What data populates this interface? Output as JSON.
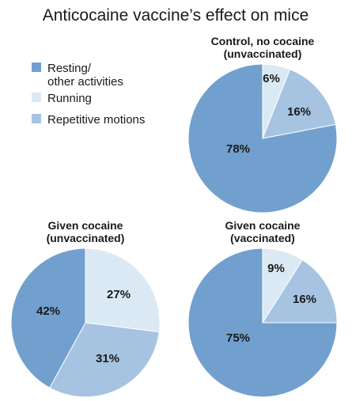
{
  "chart_data": {
    "type": "pie",
    "title": "Anticocaine vaccine’s effect on mice",
    "legend": {
      "placement": "top-left",
      "entries": [
        {
          "lines": [
            "Resting/",
            "other activities"
          ],
          "color": "#72a0ce"
        },
        {
          "lines": [
            "Running"
          ],
          "color": "#dbe9f4"
        },
        {
          "lines": [
            "Repetitive motions"
          ],
          "color": "#a6c3e2"
        }
      ]
    },
    "charts": [
      {
        "title_lines": [
          "Control, no cocaine",
          "(unvaccinated)"
        ],
        "slices": [
          {
            "category": "Running",
            "value": 6,
            "label": "6%",
            "color": "#dbe9f4"
          },
          {
            "category": "Repetitive motions",
            "value": 16,
            "label": "16%",
            "color": "#a6c3e2"
          },
          {
            "category": "Resting/other activities",
            "value": 78,
            "label": "78%",
            "color": "#72a0ce"
          }
        ]
      },
      {
        "title_lines": [
          "Given cocaine",
          "(unvaccinated)"
        ],
        "slices": [
          {
            "category": "Running",
            "value": 27,
            "label": "27%",
            "color": "#dbe9f4"
          },
          {
            "category": "Repetitive motions",
            "value": 31,
            "label": "31%",
            "color": "#a6c3e2"
          },
          {
            "category": "Resting/other activities",
            "value": 42,
            "label": "42%",
            "color": "#72a0ce"
          }
        ]
      },
      {
        "title_lines": [
          "Given cocaine",
          "(vaccinated)"
        ],
        "slices": [
          {
            "category": "Running",
            "value": 9,
            "label": "9%",
            "color": "#dbe9f4"
          },
          {
            "category": "Repetitive motions",
            "value": 16,
            "label": "16%",
            "color": "#a6c3e2"
          },
          {
            "category": "Resting/other activities",
            "value": 75,
            "label": "75%",
            "color": "#72a0ce"
          }
        ]
      }
    ]
  }
}
